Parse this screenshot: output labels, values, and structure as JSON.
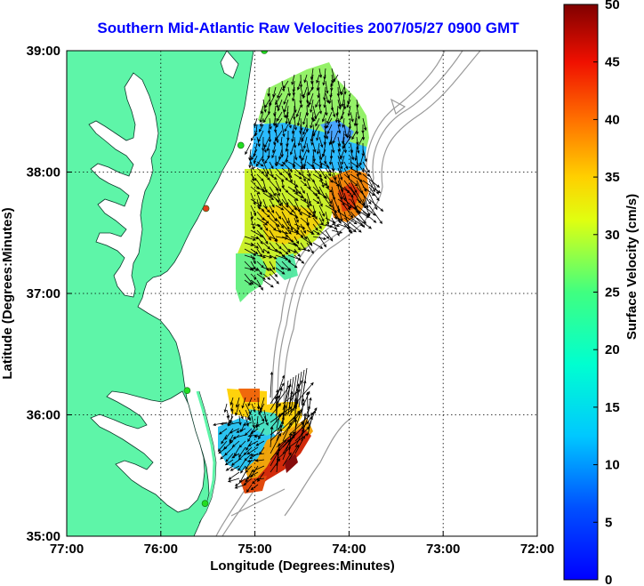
{
  "title": "Southern Mid-Atlantic Raw Velocities 2007/05/27 0900 GMT",
  "x_axis": {
    "label": "Longitude (Degrees:Minutes)",
    "ticks": [
      "77:00",
      "76:00",
      "75:00",
      "74:00",
      "73:00",
      "72:00"
    ],
    "range": [
      -77,
      -72
    ]
  },
  "y_axis": {
    "label": "Latitude (Degrees:Minutes)",
    "ticks": [
      "35:00",
      "36:00",
      "37:00",
      "38:00",
      "39:00"
    ],
    "range": [
      35,
      39
    ]
  },
  "colorbar": {
    "label": "Surface Velocity (cm/s)",
    "ticks": [
      "0",
      "5",
      "10",
      "15",
      "20",
      "25",
      "30",
      "35",
      "40",
      "45",
      "50"
    ],
    "range": [
      0,
      50
    ],
    "colormap": "jet"
  },
  "colors": {
    "land": "#5ef5a8",
    "water_background": "#ffffff",
    "bathymetry_contour": "#999999",
    "station_marker": "#22dd22",
    "station_marker_off": "#e23a1a",
    "grid": "#000000",
    "vector": "#000000"
  },
  "stations": [
    {
      "lon": -74.9,
      "lat": 39.0,
      "status": "active"
    },
    {
      "lon": -75.15,
      "lat": 38.22,
      "status": "active"
    },
    {
      "lon": -75.52,
      "lat": 37.7,
      "status": "inactive"
    },
    {
      "lon": -75.72,
      "lat": 36.2,
      "status": "active"
    },
    {
      "lon": -75.53,
      "lat": 35.27,
      "status": "active"
    }
  ],
  "north_region": {
    "approx_lon_range": [
      -75.2,
      -73.8
    ],
    "approx_lat_range": [
      36.85,
      38.85
    ],
    "speed_pattern": "mixed: ~15-25 cm/s north, ~10 cm/s near 74:15W 38:20N, 30-40 cm/s near 74:20W 37:45N"
  },
  "south_region": {
    "approx_lon_range": [
      -75.4,
      -74.4
    ],
    "approx_lat_range": [
      35.35,
      36.25
    ],
    "speed_pattern": "~10-20 cm/s west, 25-45 cm/s along southeastern edge"
  }
}
